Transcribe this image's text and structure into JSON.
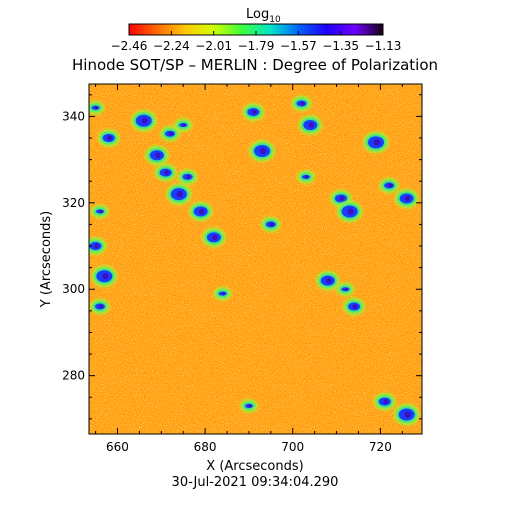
{
  "chart_data": {
    "type": "heatmap",
    "title": "Hinode SOT/SP – MERLIN : Degree of Polarization",
    "xlabel": "X (Arcseconds)",
    "ylabel": "Y (Arcseconds)",
    "timestamp": "30-Jul-2021 09:34:04.290",
    "colorbar": {
      "label": "Log",
      "label_subscript": "10",
      "range": [
        -2.46,
        -1.13
      ],
      "ticks": [
        "−2.46",
        "−2.24",
        "−2.01",
        "−1.79",
        "−1.57",
        "−1.35",
        "−1.13"
      ]
    },
    "xlim": [
      653.5,
      729.5
    ],
    "ylim": [
      266.5,
      347.5
    ],
    "x_ticks": [
      660,
      680,
      700,
      720
    ],
    "y_ticks": [
      280,
      300,
      320,
      340
    ],
    "strong_polarization_regions": [
      {
        "x": 655,
        "y": 342
      },
      {
        "x": 658,
        "y": 335
      },
      {
        "x": 666,
        "y": 339
      },
      {
        "x": 672,
        "y": 336
      },
      {
        "x": 669,
        "y": 331
      },
      {
        "x": 675,
        "y": 338
      },
      {
        "x": 671,
        "y": 327
      },
      {
        "x": 674,
        "y": 322
      },
      {
        "x": 676,
        "y": 326
      },
      {
        "x": 679,
        "y": 318
      },
      {
        "x": 656,
        "y": 318
      },
      {
        "x": 655,
        "y": 310
      },
      {
        "x": 657,
        "y": 303
      },
      {
        "x": 656,
        "y": 296
      },
      {
        "x": 682,
        "y": 312
      },
      {
        "x": 684,
        "y": 299
      },
      {
        "x": 691,
        "y": 341
      },
      {
        "x": 693,
        "y": 332
      },
      {
        "x": 702,
        "y": 343
      },
      {
        "x": 704,
        "y": 338
      },
      {
        "x": 703,
        "y": 326
      },
      {
        "x": 711,
        "y": 321
      },
      {
        "x": 713,
        "y": 318
      },
      {
        "x": 695,
        "y": 315
      },
      {
        "x": 708,
        "y": 302
      },
      {
        "x": 712,
        "y": 300
      },
      {
        "x": 714,
        "y": 296
      },
      {
        "x": 719,
        "y": 334
      },
      {
        "x": 722,
        "y": 324
      },
      {
        "x": 726,
        "y": 321
      },
      {
        "x": 690,
        "y": 273
      },
      {
        "x": 721,
        "y": 274
      },
      {
        "x": 726,
        "y": 271
      }
    ],
    "colormap": [
      "#ff0000",
      "#ff6a00",
      "#ffc800",
      "#d2ff00",
      "#3cff3c",
      "#00e6c8",
      "#0064ff",
      "#1e00ff",
      "#6e00ff",
      "#140014"
    ]
  }
}
